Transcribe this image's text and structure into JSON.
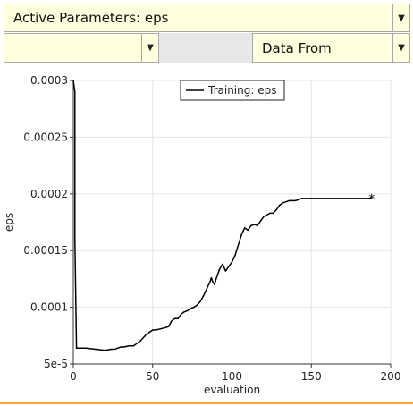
{
  "controls": {
    "active_parameters_label": "Active Parameters: eps",
    "left_select_value": "",
    "data_from_label": "Data From"
  },
  "chart_data": {
    "type": "line",
    "title": "",
    "xlabel": "evaluation",
    "ylabel": "eps",
    "xlim": [
      0,
      200
    ],
    "ylim": [
      5e-05,
      0.0003
    ],
    "xticks": [
      0,
      50,
      100,
      150,
      200
    ],
    "xtick_labels": [
      "0",
      "50",
      "100",
      "150",
      "200"
    ],
    "yticks": [
      5e-05,
      0.0001,
      0.00015,
      0.0002,
      0.00025,
      0.0003
    ],
    "ytick_labels": [
      "5e-5",
      "0.0001",
      "0.00015",
      "0.0002",
      "0.00025",
      "0.0003"
    ],
    "grid": true,
    "legend_position": "top-center",
    "series": [
      {
        "name": "Training: eps",
        "color": "#000000",
        "x": [
          0,
          1,
          1,
          2,
          2,
          8,
          14,
          20,
          24,
          26,
          28,
          30,
          32,
          35,
          38,
          40,
          42,
          44,
          46,
          48,
          50,
          52,
          55,
          58,
          60,
          62,
          64,
          66,
          68,
          70,
          72,
          74,
          76,
          78,
          80,
          82,
          84,
          86,
          87,
          88,
          89,
          90,
          92,
          94,
          95,
          96,
          98,
          100,
          102,
          104,
          106,
          108,
          110,
          112,
          114,
          116,
          120,
          124,
          126,
          128,
          130,
          132,
          136,
          140,
          144,
          150,
          160,
          170,
          180,
          188
        ],
        "y": [
          0.0003,
          0.00029,
          0.00016,
          6.5e-05,
          6.4e-05,
          6.4e-05,
          6.3e-05,
          6.2e-05,
          6.3e-05,
          6.3e-05,
          6.4e-05,
          6.5e-05,
          6.5e-05,
          6.6e-05,
          6.6e-05,
          6.8e-05,
          7e-05,
          7.3e-05,
          7.6e-05,
          7.8e-05,
          8e-05,
          8e-05,
          8.1e-05,
          8.2e-05,
          8.3e-05,
          8.8e-05,
          9e-05,
          9e-05,
          9.4e-05,
          9.6e-05,
          9.7e-05,
          9.9e-05,
          0.0001,
          0.000102,
          0.000105,
          0.00011,
          0.000116,
          0.000122,
          0.000126,
          0.000122,
          0.00012,
          0.000125,
          0.000133,
          0.000138,
          0.000135,
          0.000132,
          0.000136,
          0.00014,
          0.000146,
          0.000155,
          0.000164,
          0.00017,
          0.000168,
          0.000172,
          0.000173,
          0.000172,
          0.00018,
          0.000183,
          0.000183,
          0.000186,
          0.00019,
          0.000192,
          0.000194,
          0.000194,
          0.000196,
          0.000196,
          0.000196,
          0.000196,
          0.000196,
          0.000196
        ]
      }
    ],
    "end_marker": "*"
  }
}
